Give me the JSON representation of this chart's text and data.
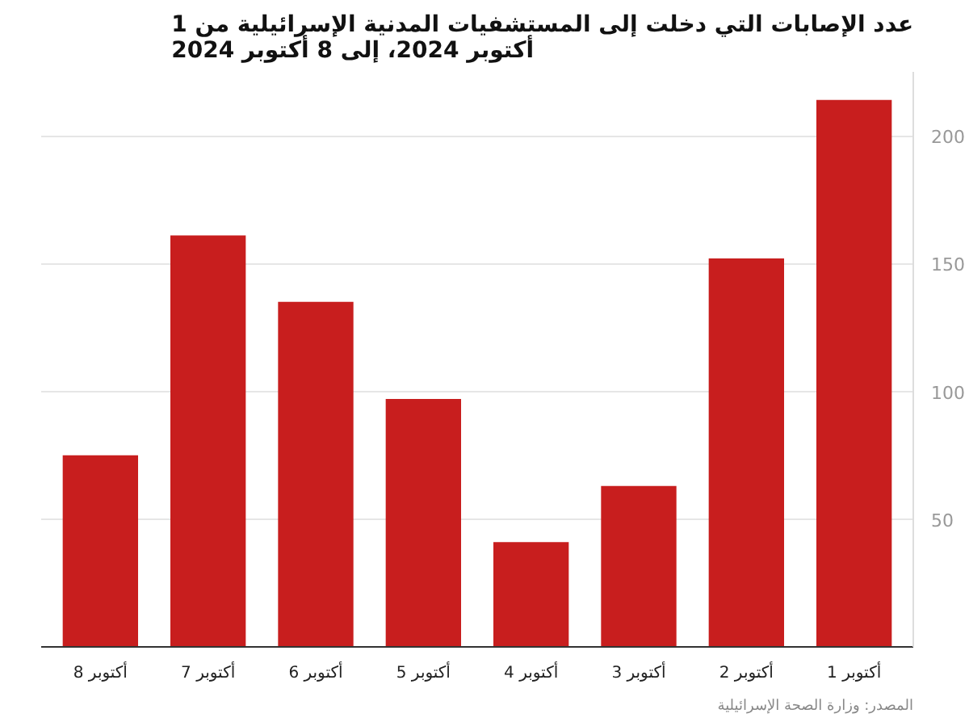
{
  "chart_data": {
    "type": "bar",
    "title": "عدد الإصابات التي دخلت إلى المستشفيات المدنية الإسرائيلية من 1 أكتوبر 2024، إلى 8 أكتوبر 2024",
    "categories": [
      "8 أكتوبر",
      "7 أكتوبر",
      "6 أكتوبر",
      "5 أكتوبر",
      "4 أكتوبر",
      "3 أكتوبر",
      "2 أكتوبر",
      "1 أكتوبر"
    ],
    "values": [
      75,
      161,
      135,
      97,
      41,
      63,
      152,
      214
    ],
    "color": "#c81e1e",
    "ylim": [
      0,
      225
    ],
    "yticks": [
      50,
      100,
      150,
      200
    ],
    "grid": "y",
    "annotations": [
      "المصدر: وزارة الصحة الإسرائيلية"
    ]
  }
}
